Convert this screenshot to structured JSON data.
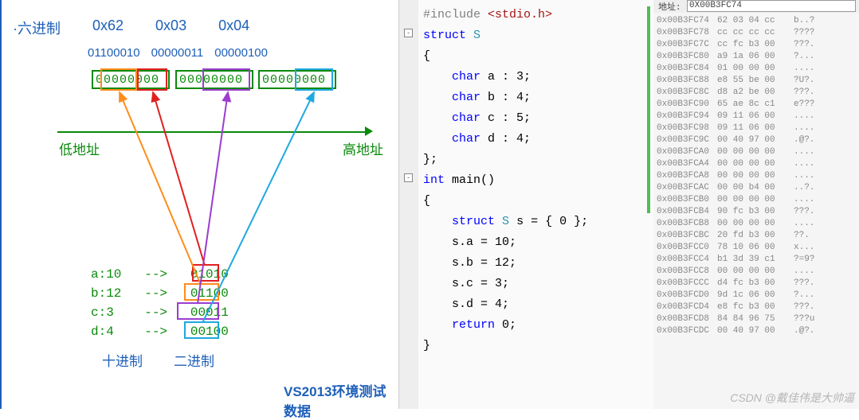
{
  "diagram": {
    "hex_label": "·六进制",
    "hex_values": [
      "0x62",
      "0x03",
      "0x04"
    ],
    "bin_values": [
      "01100010",
      "00000011",
      "00000100"
    ],
    "bit_groups": [
      "00000000",
      "00000000",
      "00000000"
    ],
    "low_addr": "低地址",
    "high_addr": "高地址",
    "vars": [
      {
        "name": "a:10",
        "arrow": "-->",
        "bin": "01010"
      },
      {
        "name": "b:12",
        "arrow": "-->",
        "bin": "01100"
      },
      {
        "name": "c:3",
        "arrow": "-->",
        "bin": "00011"
      },
      {
        "name": "d:4",
        "arrow": "-->",
        "bin": "00100"
      }
    ],
    "dec_label": "十进制",
    "bin_label": "二进制",
    "footer_title": "VS2013环境测试数据",
    "colors": {
      "blue": "#1e5fb8",
      "green": "#0a8a0a",
      "red": "#e02020",
      "orange": "#ff8c1a",
      "purple": "#9b3dcf",
      "cyan": "#1fa8e0"
    }
  },
  "code": {
    "lines": [
      {
        "text": "#include <stdio.h>",
        "cls": [
          "kw-brown"
        ]
      },
      {
        "text": "struct S",
        "cls": [
          "kw-blue",
          "kw-teal"
        ]
      },
      {
        "text": "{",
        "cls": []
      },
      {
        "text": "    char a : 3;",
        "cls": [
          "kw-blue"
        ]
      },
      {
        "text": "    char b : 4;",
        "cls": [
          "kw-blue"
        ]
      },
      {
        "text": "    char c : 5;",
        "cls": [
          "kw-blue"
        ]
      },
      {
        "text": "    char d : 4;",
        "cls": [
          "kw-blue"
        ]
      },
      {
        "text": "};",
        "cls": []
      },
      {
        "text": "int main()",
        "cls": [
          "kw-blue"
        ]
      },
      {
        "text": "{",
        "cls": []
      },
      {
        "text": "    struct S s = { 0 };",
        "cls": [
          "kw-blue",
          "kw-teal"
        ]
      },
      {
        "text": "    s.a = 10;",
        "cls": []
      },
      {
        "text": "    s.b = 12;",
        "cls": []
      },
      {
        "text": "    s.c = 3;",
        "cls": []
      },
      {
        "text": "    s.d = 4;",
        "cls": []
      },
      {
        "text": "    return 0;",
        "cls": [
          "kw-blue"
        ]
      },
      {
        "text": "}",
        "cls": []
      }
    ]
  },
  "memory": {
    "header": "地址:",
    "input": "0X00B3FC74",
    "rows": [
      {
        "addr": "0x00B3FC74",
        "bytes": "62 03 04 cc",
        "ascii": "b..?"
      },
      {
        "addr": "0x00B3FC78",
        "bytes": "cc cc cc cc",
        "ascii": "????"
      },
      {
        "addr": "0x00B3FC7C",
        "bytes": "cc fc b3 00",
        "ascii": "???."
      },
      {
        "addr": "0x00B3FC80",
        "bytes": "a9 1a 06 00",
        "ascii": "?..."
      },
      {
        "addr": "0x00B3FC84",
        "bytes": "01 00 00 00",
        "ascii": "...."
      },
      {
        "addr": "0x00B3FC88",
        "bytes": "e8 55 be 00",
        "ascii": "?U?."
      },
      {
        "addr": "0x00B3FC8C",
        "bytes": "d8 a2 be 00",
        "ascii": "???."
      },
      {
        "addr": "0x00B3FC90",
        "bytes": "65 ae 8c c1",
        "ascii": "e???"
      },
      {
        "addr": "0x00B3FC94",
        "bytes": "09 11 06 00",
        "ascii": "...."
      },
      {
        "addr": "0x00B3FC98",
        "bytes": "09 11 06 00",
        "ascii": "...."
      },
      {
        "addr": "0x00B3FC9C",
        "bytes": "00 40 97 00",
        "ascii": ".@?."
      },
      {
        "addr": "0x00B3FCA0",
        "bytes": "00 00 00 00",
        "ascii": "...."
      },
      {
        "addr": "0x00B3FCA4",
        "bytes": "00 00 00 00",
        "ascii": "...."
      },
      {
        "addr": "0x00B3FCA8",
        "bytes": "00 00 00 00",
        "ascii": "...."
      },
      {
        "addr": "0x00B3FCAC",
        "bytes": "00 00 b4 00",
        "ascii": "..?."
      },
      {
        "addr": "0x00B3FCB0",
        "bytes": "00 00 00 00",
        "ascii": "...."
      },
      {
        "addr": "0x00B3FCB4",
        "bytes": "90 fc b3 00",
        "ascii": "???."
      },
      {
        "addr": "0x00B3FCB8",
        "bytes": "00 00 00 00",
        "ascii": "...."
      },
      {
        "addr": "0x00B3FCBC",
        "bytes": "20 fd b3 00",
        "ascii": " ??."
      },
      {
        "addr": "0x00B3FCC0",
        "bytes": "78 10 06 00",
        "ascii": "x..."
      },
      {
        "addr": "0x00B3FCC4",
        "bytes": "b1 3d 39 c1",
        "ascii": "?=9?"
      },
      {
        "addr": "0x00B3FCC8",
        "bytes": "00 00 00 00",
        "ascii": "...."
      },
      {
        "addr": "0x00B3FCCC",
        "bytes": "d4 fc b3 00",
        "ascii": "???."
      },
      {
        "addr": "0x00B3FCD0",
        "bytes": "9d 1c 06 00",
        "ascii": "?..."
      },
      {
        "addr": "0x00B3FCD4",
        "bytes": "e8 fc b3 00",
        "ascii": "???."
      },
      {
        "addr": "0x00B3FCD8",
        "bytes": "84 84 96 75",
        "ascii": "???u"
      },
      {
        "addr": "0x00B3FCDC",
        "bytes": "00 40 97 00",
        "ascii": ".@?."
      }
    ]
  },
  "watermark": "CSDN @戴佳伟是大帅逼"
}
